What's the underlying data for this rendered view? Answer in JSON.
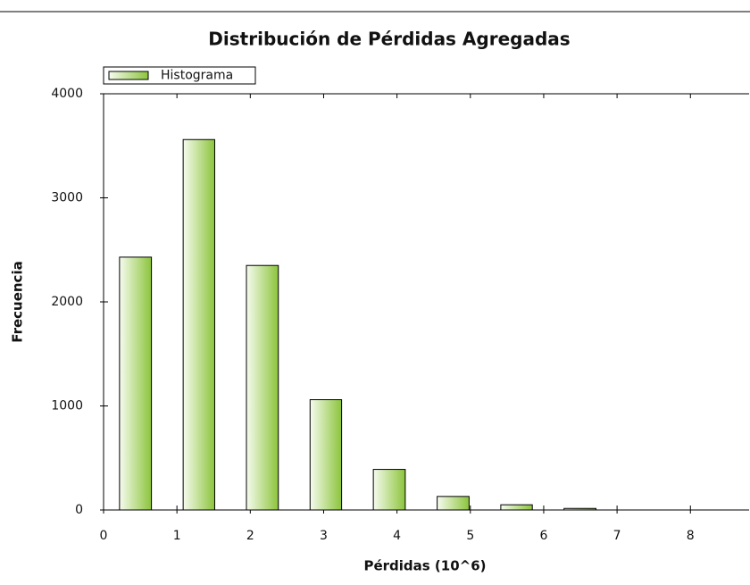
{
  "chart_data": {
    "type": "histogram",
    "title": "Distribución de Pérdidas Agregadas",
    "xlabel": "Pérdidas (10^6)",
    "ylabel": "Frecuencia",
    "series": [
      {
        "name": "Histograma",
        "color": "#8cc43c",
        "values": [
          2430,
          3560,
          2350,
          1060,
          390,
          130,
          50,
          15
        ]
      }
    ],
    "bins": [
      0,
      0.87,
      1.73,
      2.6,
      3.46,
      4.33,
      5.2,
      6.06,
      6.93
    ],
    "xlim": [
      0,
      8.8
    ],
    "xticks": [
      0,
      1,
      2,
      3,
      4,
      5,
      6,
      7,
      8
    ],
    "ylim": [
      0,
      4000
    ],
    "yticks": [
      0,
      1000,
      2000,
      3000,
      4000
    ],
    "legend": "top-left"
  }
}
